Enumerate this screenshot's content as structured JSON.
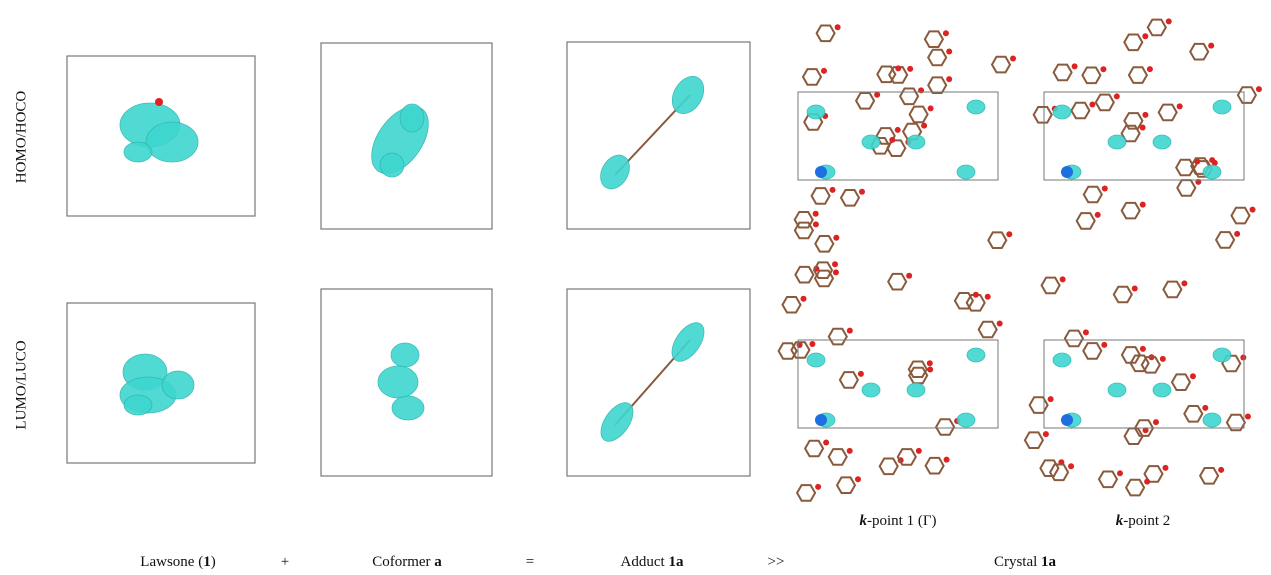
{
  "row_labels": [
    "HOMO/HOCO",
    "LUMO/LUCO"
  ],
  "kpoint_labels": [
    {
      "parts": [
        {
          "text": "k",
          "bold": true,
          "italic": true
        },
        {
          "text": "-point 1 (Γ)"
        }
      ]
    },
    {
      "parts": [
        {
          "text": "k",
          "bold": true,
          "italic": true
        },
        {
          "text": "-point 2"
        }
      ]
    }
  ],
  "bottom_labels": [
    {
      "parts": [
        {
          "text": "Lawsone ("
        },
        {
          "text": "1",
          "bold": true
        },
        {
          "text": ")"
        }
      ]
    },
    {
      "parts": [
        {
          "text": "+"
        }
      ]
    },
    {
      "parts": [
        {
          "text": "Coformer "
        },
        {
          "text": "a",
          "bold": true
        }
      ]
    },
    {
      "parts": [
        {
          "text": "="
        }
      ]
    },
    {
      "parts": [
        {
          "text": "Adduct "
        },
        {
          "text": "1a",
          "bold": true
        }
      ]
    },
    {
      "parts": [
        {
          "text": ">>"
        }
      ]
    },
    {
      "parts": [
        {
          "text": "Crystal "
        },
        {
          "text": "1a",
          "bold": true
        }
      ]
    }
  ]
}
